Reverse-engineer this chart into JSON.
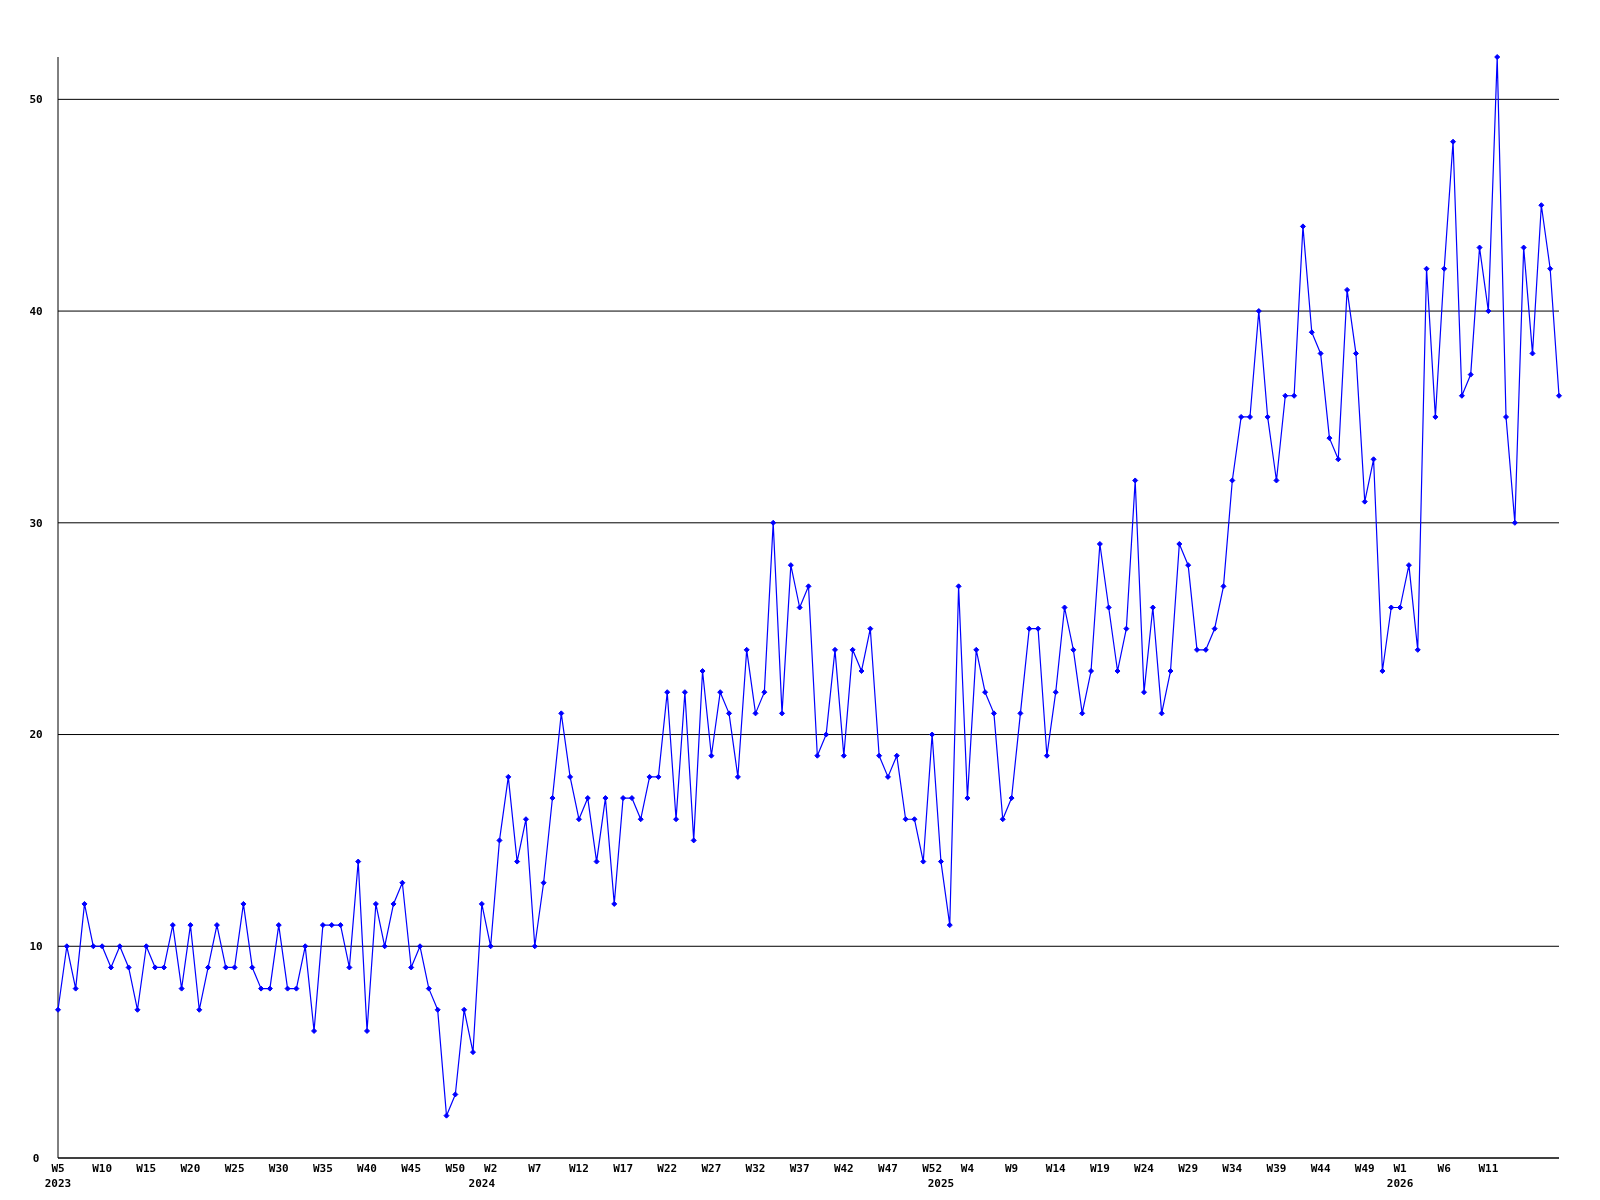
{
  "chart_data": {
    "type": "line",
    "categories": [
      "W5\n2023",
      null,
      null,
      null,
      null,
      "W10",
      null,
      null,
      null,
      null,
      "W15",
      null,
      null,
      null,
      null,
      "W20",
      null,
      null,
      null,
      null,
      "W25",
      null,
      null,
      null,
      null,
      "W30",
      null,
      null,
      null,
      null,
      "W35",
      null,
      null,
      null,
      null,
      "W40",
      null,
      null,
      null,
      null,
      "W45",
      null,
      null,
      null,
      null,
      "W50",
      null,
      null,
      "\n2024",
      "W2",
      null,
      null,
      null,
      null,
      "W7",
      null,
      null,
      null,
      null,
      "W12",
      null,
      null,
      null,
      null,
      "W17",
      null,
      null,
      null,
      null,
      "W22",
      null,
      null,
      null,
      null,
      "W27",
      null,
      null,
      null,
      null,
      "W32",
      null,
      null,
      null,
      null,
      "W37",
      null,
      null,
      null,
      null,
      "W42",
      null,
      null,
      null,
      null,
      "W47",
      null,
      null,
      null,
      null,
      "W52",
      "\n2025",
      null,
      null,
      "W4",
      null,
      null,
      null,
      null,
      "W9",
      null,
      null,
      null,
      null,
      "W14",
      null,
      null,
      null,
      null,
      "W19",
      null,
      null,
      null,
      null,
      "W24",
      null,
      null,
      null,
      null,
      "W29",
      null,
      null,
      null,
      null,
      "W34",
      null,
      null,
      null,
      null,
      "W39",
      null,
      null,
      null,
      null,
      "W44",
      null,
      null,
      null,
      null,
      "W49",
      null,
      null,
      null,
      "W1\n2026",
      null,
      null,
      null,
      null,
      "W6",
      null,
      null,
      null,
      null,
      "W11",
      null,
      null,
      null,
      null,
      null,
      null,
      null,
      null
    ],
    "series": [
      {
        "color": "#0000ff",
        "values": [
          7,
          10,
          8,
          12,
          10,
          10,
          9,
          10,
          9,
          7,
          10,
          9,
          9,
          11,
          8,
          11,
          7,
          9,
          11,
          9,
          9,
          12,
          9,
          8,
          8,
          11,
          8,
          8,
          10,
          6,
          11,
          11,
          11,
          9,
          14,
          6,
          12,
          10,
          12,
          13,
          9,
          10,
          8,
          7,
          2,
          3,
          7,
          5,
          12,
          10,
          15,
          18,
          14,
          16,
          10,
          13,
          17,
          21,
          18,
          16,
          17,
          14,
          17,
          12,
          17,
          17,
          16,
          18,
          18,
          22,
          16,
          22,
          15,
          23,
          19,
          22,
          21,
          18,
          24,
          21,
          22,
          30,
          21,
          28,
          26,
          27,
          19,
          20,
          24,
          19,
          24,
          23,
          25,
          19,
          18,
          19,
          16,
          16,
          14,
          20,
          14,
          11,
          27,
          17,
          24,
          22,
          21,
          16,
          17,
          21,
          25,
          25,
          19,
          22,
          26,
          24,
          21,
          23,
          29,
          26,
          23,
          25,
          32,
          22,
          26,
          21,
          23,
          29,
          28,
          24,
          24,
          25,
          27,
          32,
          35,
          35,
          40,
          35,
          32,
          36,
          36,
          44,
          39,
          38,
          34,
          33,
          41,
          38,
          31,
          33,
          23,
          26,
          26,
          28,
          24,
          42,
          35,
          42,
          48,
          36,
          37,
          43,
          40,
          52,
          35,
          30,
          43,
          38,
          45,
          42,
          36
        ]
      }
    ],
    "ylim": [
      0,
      52
    ],
    "yticks": [
      0,
      10,
      20,
      30,
      40,
      50
    ],
    "grid": "y",
    "marker": "diamond",
    "line_style": "solid"
  }
}
